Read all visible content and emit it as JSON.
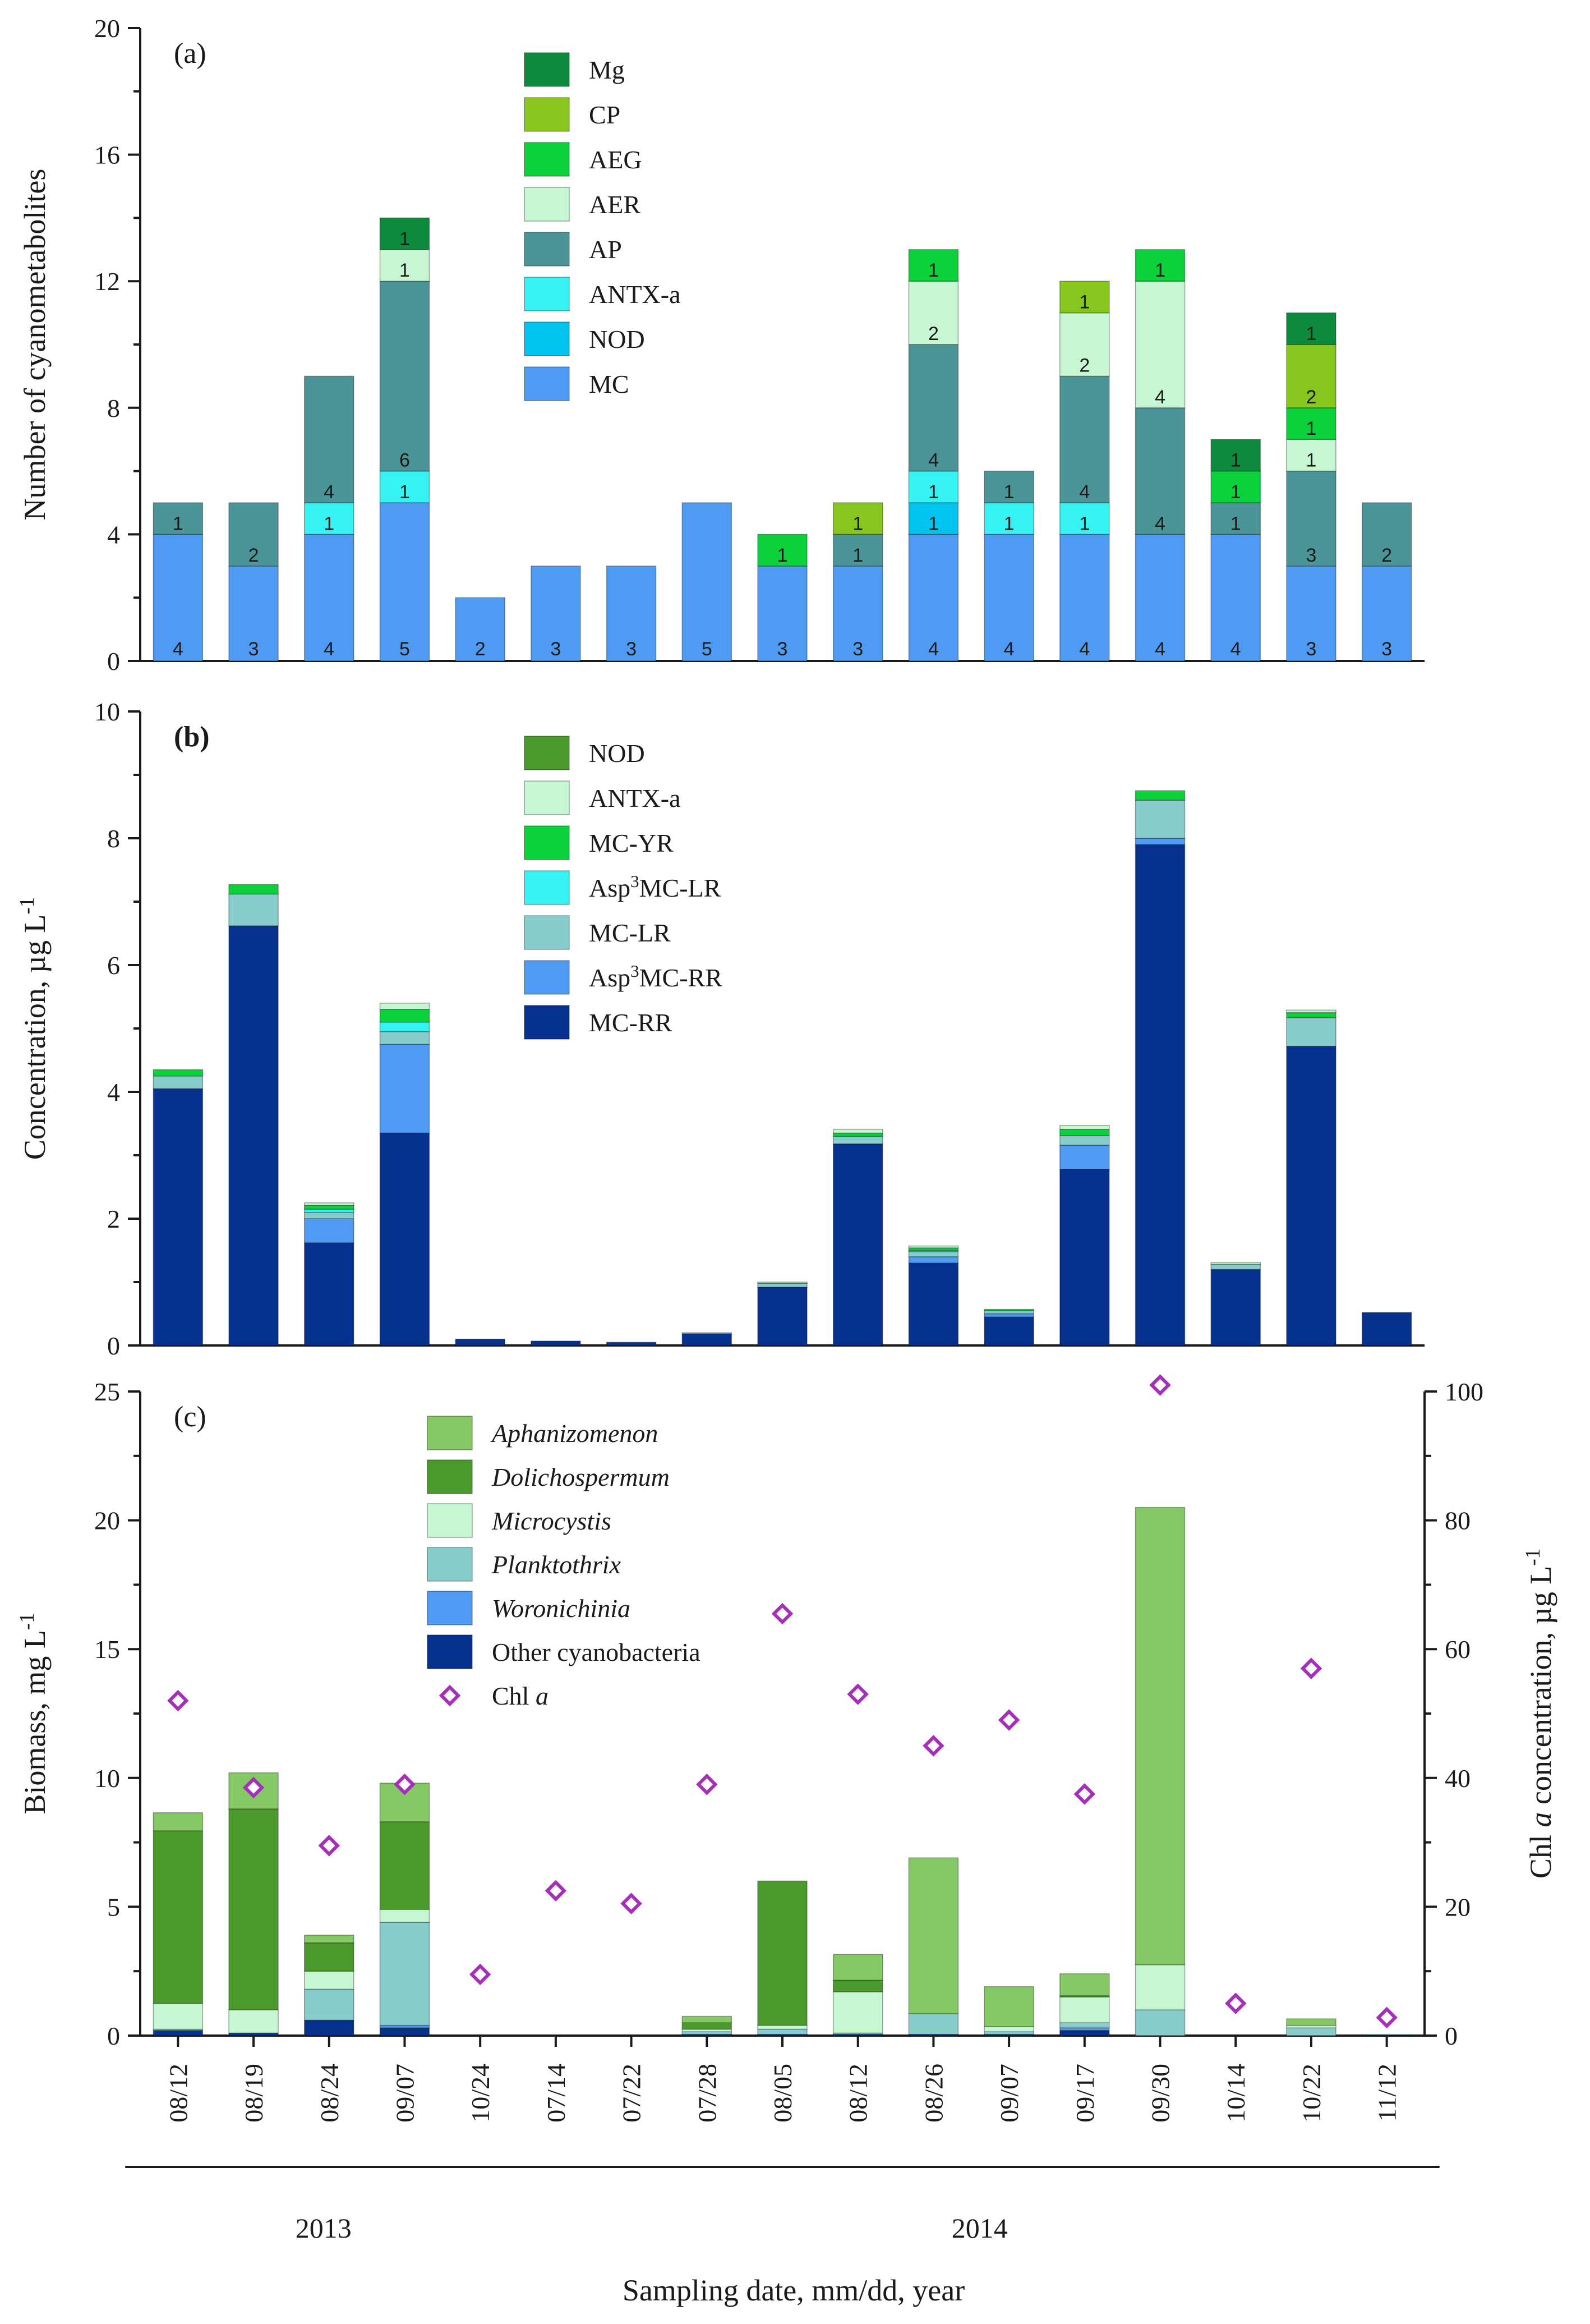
{
  "figure": {
    "x_axis_title": "Sampling date, mm/dd, year",
    "dates": [
      "08/12",
      "08/19",
      "08/24",
      "09/07",
      "10/24",
      "07/14",
      "07/22",
      "07/28",
      "08/05",
      "08/12",
      "08/26",
      "09/07",
      "09/17",
      "09/30",
      "10/14",
      "10/22",
      "11/12"
    ],
    "year_groups": [
      {
        "label": "2013",
        "start": 0,
        "end": 4
      },
      {
        "label": "2014",
        "start": 5,
        "end": 16
      }
    ]
  },
  "chart_data": [
    {
      "id": "a",
      "type": "bar",
      "stacked": true,
      "panel_label": "(a)",
      "ylabel": "Number of cyanometabolites",
      "ylim": [
        0,
        20
      ],
      "yticks": [
        0,
        4,
        8,
        12,
        16,
        20
      ],
      "segment_labels": true,
      "series": [
        {
          "name": "MC",
          "color": "#4f9af2",
          "values": [
            4,
            3,
            4,
            5,
            2,
            3,
            3,
            5,
            3,
            3,
            4,
            4,
            4,
            4,
            4,
            3,
            3
          ],
          "labels": [
            "4",
            "3",
            "4",
            "5",
            "2",
            "3",
            "3",
            "5",
            "3",
            "3",
            "4",
            "4",
            "4",
            "4",
            "4",
            "3",
            "3"
          ]
        },
        {
          "name": "NOD",
          "color": "#00c4ef",
          "values": [
            0,
            0,
            0,
            0,
            0,
            0,
            0,
            0,
            0,
            0,
            1,
            0,
            0,
            0,
            0,
            0,
            0
          ],
          "labels": [
            "",
            "",
            "",
            "",
            "",
            "",
            "",
            "",
            "",
            "",
            "1",
            "",
            "",
            "",
            "",
            "",
            ""
          ]
        },
        {
          "name": "ANTX-a",
          "color": "#35f3f3",
          "values": [
            0,
            0,
            1,
            1,
            0,
            0,
            0,
            0,
            0,
            0,
            1,
            1,
            1,
            0,
            0,
            0,
            0
          ],
          "labels": [
            "",
            "",
            "1",
            "1",
            "",
            "",
            "",
            "",
            "",
            "",
            "1",
            "1",
            "1",
            "",
            "",
            "",
            ""
          ]
        },
        {
          "name": "AP",
          "color": "#4b9598",
          "values": [
            1,
            2,
            4,
            6,
            0,
            0,
            0,
            0,
            0,
            1,
            4,
            1,
            4,
            4,
            1,
            3,
            2
          ],
          "labels": [
            "1",
            "2",
            "4",
            "6",
            "",
            "",
            "",
            "",
            "",
            "1",
            "4",
            "1",
            "4",
            "4",
            "1",
            "3",
            "2"
          ]
        },
        {
          "name": "AER",
          "color": "#c6f7d2",
          "values": [
            0,
            0,
            0,
            1,
            0,
            0,
            0,
            0,
            0,
            0,
            2,
            0,
            2,
            4,
            0,
            1,
            0
          ],
          "labels": [
            "",
            "",
            "",
            "1",
            "",
            "",
            "",
            "",
            "",
            "",
            "2",
            "",
            "2",
            "4",
            "",
            "1",
            ""
          ]
        },
        {
          "name": "AEG",
          "color": "#0bd13b",
          "values": [
            0,
            0,
            0,
            0,
            0,
            0,
            0,
            0,
            1,
            0,
            1,
            0,
            0,
            1,
            1,
            1,
            0
          ],
          "labels": [
            "",
            "",
            "",
            "",
            "",
            "",
            "",
            "",
            "1",
            "",
            "1",
            "",
            "",
            "1",
            "1",
            "1",
            ""
          ]
        },
        {
          "name": "CP",
          "color": "#86c61f",
          "values": [
            0,
            0,
            0,
            0,
            0,
            0,
            0,
            0,
            0,
            1,
            0,
            0,
            1,
            0,
            0,
            2,
            0
          ],
          "labels": [
            "",
            "",
            "",
            "",
            "",
            "",
            "",
            "",
            "",
            "1",
            "",
            "",
            "1",
            "",
            "",
            "2",
            ""
          ]
        },
        {
          "name": "Mg",
          "color": "#0d8a3c",
          "values": [
            0,
            0,
            0,
            1,
            0,
            0,
            0,
            0,
            0,
            0,
            0,
            0,
            0,
            0,
            1,
            1,
            0
          ],
          "labels": [
            "",
            "",
            "",
            "1",
            "",
            "",
            "",
            "",
            "",
            "",
            "",
            "",
            "",
            "",
            "1",
            "1",
            ""
          ]
        }
      ],
      "legend": [
        "Mg",
        "CP",
        "AEG",
        "AER",
        "AP",
        "ANTX-a",
        "NOD",
        "MC"
      ],
      "legend_position": "top-center"
    },
    {
      "id": "b",
      "type": "bar",
      "stacked": true,
      "panel_label": "(b)",
      "ylabel": "Concentration, µg L-1",
      "ylim": [
        0,
        10
      ],
      "yticks": [
        0,
        2,
        4,
        6,
        8,
        10
      ],
      "series": [
        {
          "name": "MC-RR",
          "color": "#06318f",
          "values": [
            4.05,
            6.62,
            1.62,
            3.35,
            0.1,
            0.07,
            0.05,
            0.18,
            0.92,
            3.18,
            1.3,
            0.45,
            2.78,
            7.9,
            1.2,
            4.72,
            0.52
          ]
        },
        {
          "name": "Asp3MC-RR",
          "color": "#4f9af2",
          "values": [
            0,
            0,
            0.38,
            1.4,
            0,
            0,
            0,
            0.02,
            0,
            0,
            0.1,
            0.05,
            0.38,
            0.1,
            0,
            0,
            0
          ]
        },
        {
          "name": "MC-LR",
          "color": "#86cdcb",
          "values": [
            0.2,
            0.5,
            0.1,
            0.2,
            0,
            0,
            0,
            0,
            0.06,
            0.12,
            0.08,
            0.05,
            0.15,
            0.6,
            0.08,
            0.45,
            0
          ]
        },
        {
          "name": "Asp3MC-LR",
          "color": "#35f3f3",
          "values": [
            0,
            0,
            0.05,
            0.15,
            0,
            0,
            0,
            0,
            0,
            0,
            0.02,
            0,
            0,
            0,
            0,
            0,
            0
          ]
        },
        {
          "name": "MC-YR",
          "color": "#0bd13b",
          "values": [
            0.1,
            0.15,
            0.06,
            0.2,
            0,
            0,
            0,
            0,
            0,
            0.05,
            0.04,
            0.02,
            0.1,
            0.15,
            0,
            0.08,
            0
          ]
        },
        {
          "name": "ANTX-a",
          "color": "#c6f7d2",
          "values": [
            0,
            0,
            0.04,
            0.1,
            0,
            0,
            0,
            0,
            0.02,
            0.06,
            0.03,
            0,
            0.06,
            0,
            0.03,
            0.04,
            0
          ]
        },
        {
          "name": "NOD",
          "color": "#4a9a2c",
          "values": [
            0,
            0,
            0,
            0,
            0,
            0,
            0,
            0,
            0,
            0,
            0,
            0,
            0,
            0,
            0,
            0,
            0
          ]
        }
      ],
      "legend": [
        "NOD",
        "ANTX-a",
        "MC-YR",
        "Asp3MC-LR",
        "MC-LR",
        "Asp3MC-RR",
        "MC-RR"
      ],
      "legend_position": "top-center"
    },
    {
      "id": "c",
      "type": "bar",
      "stacked": true,
      "panel_label": "(c)",
      "ylabel": "Biomass, mg L-1",
      "ylim": [
        0,
        25
      ],
      "yticks": [
        0,
        5,
        10,
        15,
        20,
        25
      ],
      "y2label": "Chl a concentration, µg L-1",
      "y2lim": [
        0,
        100
      ],
      "y2ticks": [
        0,
        20,
        40,
        60,
        80,
        100
      ],
      "series": [
        {
          "name": "Other cyanobacteria",
          "color": "#06318f",
          "values": [
            0.2,
            0.1,
            0.6,
            0.3,
            0,
            0,
            0,
            0.05,
            0.05,
            0.05,
            0.05,
            0.05,
            0.2,
            0,
            0,
            0,
            0.02
          ]
        },
        {
          "name": "Woronichinia",
          "color": "#4f9af2",
          "values": [
            0,
            0,
            0,
            0.1,
            0,
            0,
            0,
            0,
            0,
            0,
            0,
            0,
            0.1,
            0,
            0,
            0,
            0
          ]
        },
        {
          "name": "Planktothrix",
          "color": "#86cdcb",
          "values": [
            0.05,
            0,
            1.2,
            4.0,
            0,
            0,
            0,
            0.1,
            0.2,
            0.05,
            0.8,
            0.1,
            0.2,
            1.0,
            0,
            0.3,
            0.03
          ]
        },
        {
          "name": "Microcystis",
          "color": "#c6f7d2",
          "values": [
            1.0,
            0.9,
            0.7,
            0.5,
            0,
            0,
            0,
            0.1,
            0.15,
            1.6,
            0,
            0.2,
            1.0,
            1.75,
            0,
            0.1,
            0
          ]
        },
        {
          "name": "Dolichospermum",
          "color": "#4a9a2c",
          "values": [
            6.7,
            7.8,
            1.1,
            3.4,
            0,
            0,
            0,
            0.25,
            5.6,
            0.45,
            0,
            0,
            0.05,
            0,
            0,
            0,
            0
          ]
        },
        {
          "name": "Aphanizomenon",
          "color": "#85c965",
          "values": [
            0.7,
            1.4,
            0.3,
            1.5,
            0,
            0,
            0,
            0.25,
            0,
            1.0,
            6.05,
            1.55,
            0.85,
            17.75,
            0,
            0.25,
            0
          ]
        }
      ],
      "scatter": {
        "name": "Chl a",
        "color": "#a52fb9",
        "axis": "y2",
        "values": [
          52,
          38.5,
          29.5,
          39,
          9.5,
          22.5,
          20.5,
          39,
          65.5,
          53,
          45,
          49,
          37.5,
          101,
          5,
          57,
          2.8
        ]
      },
      "legend": [
        "Aphanizomenon",
        "Dolichospermum",
        "Microcystis",
        "Planktothrix",
        "Woronichinia",
        "Other cyanobacteria",
        "Chl a"
      ],
      "legend_italic": [
        "Aphanizomenon",
        "Dolichospermum",
        "Microcystis",
        "Planktothrix",
        "Woronichinia"
      ],
      "legend_position": "top-center"
    }
  ]
}
